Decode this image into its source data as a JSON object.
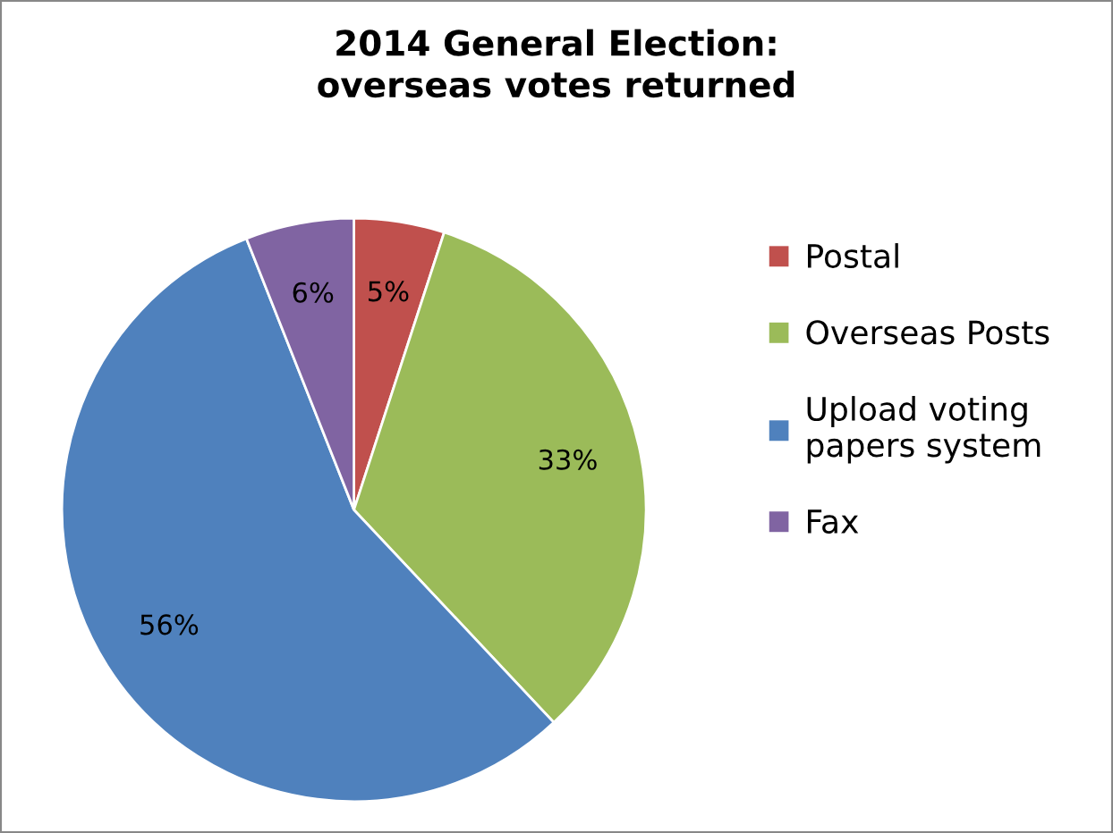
{
  "chart_data": {
    "type": "pie",
    "title": "2014 General Election:\noverseas votes returned",
    "categories": [
      "Postal",
      "Overseas Posts",
      "Upload voting\npapers system",
      "Fax"
    ],
    "values": [
      5,
      33,
      56,
      6
    ],
    "value_labels": [
      "5%",
      "33%",
      "56%",
      "6%"
    ],
    "colors": [
      "#c0504d",
      "#9bbb59",
      "#4f81bd",
      "#8064a2"
    ],
    "legend": "right"
  }
}
